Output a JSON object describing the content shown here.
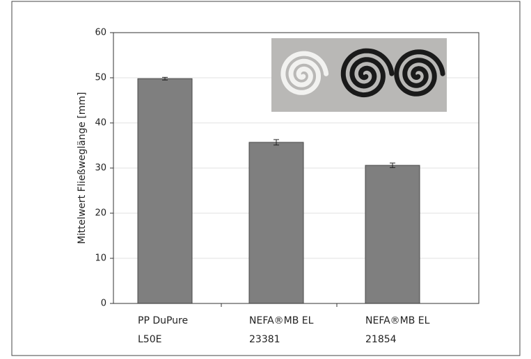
{
  "chart_data": {
    "type": "bar",
    "y_label": "Mittelwert Fließweglänge [mm]",
    "categories": [
      [
        "PP DuPure",
        "L50E"
      ],
      [
        "NEFA®MB EL",
        "23381"
      ],
      [
        "NEFA®MB EL",
        "21854"
      ]
    ],
    "values": [
      49.8,
      35.7,
      30.6
    ],
    "errors": [
      0.3,
      0.6,
      0.5
    ],
    "color": "#7f7f7f",
    "ylim": [
      0,
      60
    ],
    "yticks": [
      0,
      10,
      20,
      30,
      40,
      50,
      60
    ],
    "grid": true
  }
}
